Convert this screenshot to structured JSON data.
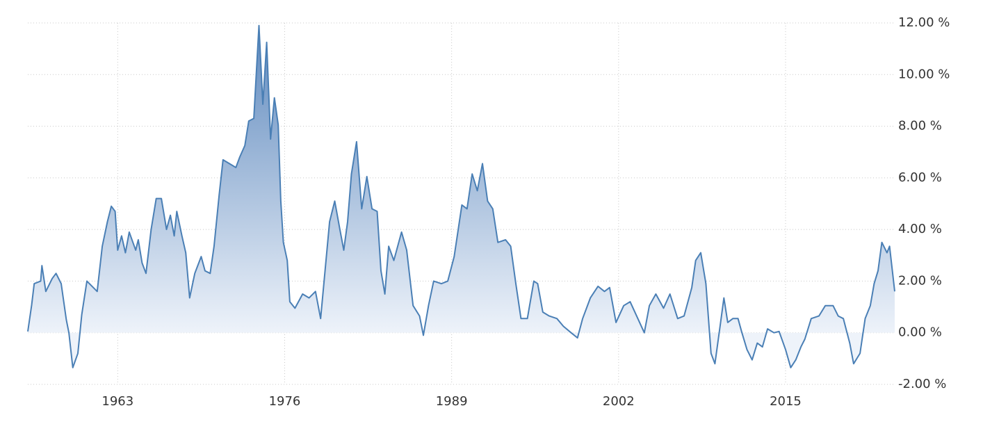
{
  "chart_data": {
    "type": "area",
    "x": [
      1956.0,
      1956.3,
      1956.5,
      1957.0,
      1957.1,
      1957.4,
      1957.9,
      1958.2,
      1958.6,
      1959.0,
      1959.2,
      1959.5,
      1959.9,
      1960.2,
      1960.6,
      1961.1,
      1961.4,
      1961.8,
      1962.2,
      1962.5,
      1962.8,
      1963.0,
      1963.3,
      1963.6,
      1963.9,
      1964.4,
      1964.6,
      1964.9,
      1965.2,
      1965.6,
      1966.0,
      1966.4,
      1966.8,
      1967.1,
      1967.4,
      1967.6,
      1968.0,
      1968.3,
      1968.6,
      1969.0,
      1969.5,
      1969.8,
      1970.2,
      1970.5,
      1970.9,
      1971.2,
      1971.7,
      1972.2,
      1972.5,
      1972.9,
      1973.2,
      1973.6,
      1974.0,
      1974.3,
      1974.6,
      1974.9,
      1975.2,
      1975.5,
      1975.7,
      1975.9,
      1976.2,
      1976.4,
      1976.8,
      1977.4,
      1977.9,
      1978.4,
      1978.8,
      1979.2,
      1979.5,
      1979.9,
      1980.3,
      1980.6,
      1980.9,
      1981.2,
      1981.6,
      1982.0,
      1982.4,
      1982.8,
      1983.2,
      1983.5,
      1983.8,
      1984.1,
      1984.5,
      1985.1,
      1985.5,
      1986.0,
      1986.5,
      1986.8,
      1987.2,
      1987.6,
      1988.2,
      1988.7,
      1989.2,
      1989.8,
      1990.2,
      1990.6,
      1991.0,
      1991.4,
      1991.8,
      1992.2,
      1992.6,
      1993.2,
      1993.6,
      1994.0,
      1994.4,
      1994.9,
      1995.4,
      1995.7,
      1996.1,
      1996.6,
      1997.2,
      1997.7,
      1998.3,
      1998.8,
      1999.2,
      1999.8,
      2000.4,
      2000.9,
      2001.3,
      2001.8,
      2002.4,
      2002.9,
      2003.5,
      2004.0,
      2004.4,
      2004.9,
      2005.5,
      2006.0,
      2006.6,
      2007.1,
      2007.7,
      2008.0,
      2008.4,
      2008.8,
      2009.2,
      2009.5,
      2009.9,
      2010.2,
      2010.5,
      2010.9,
      2011.3,
      2011.6,
      2012.0,
      2012.4,
      2012.8,
      2013.2,
      2013.6,
      2014.1,
      2014.5,
      2015.0,
      2015.4,
      2015.8,
      2016.2,
      2016.5,
      2017.0,
      2017.6,
      2018.1,
      2018.7,
      2019.1,
      2019.5,
      2020.0,
      2020.3,
      2020.8,
      2021.2,
      2021.6,
      2021.9,
      2022.2,
      2022.5,
      2022.9,
      2023.1,
      2023.5
    ],
    "values": [
      0.05,
      1.07,
      1.9,
      2.0,
      2.6,
      1.6,
      2.1,
      2.3,
      1.9,
      0.5,
      0.0,
      -1.35,
      -0.8,
      0.7,
      2.0,
      1.75,
      1.6,
      3.35,
      4.3,
      4.9,
      4.7,
      3.2,
      3.75,
      3.1,
      3.9,
      3.2,
      3.6,
      2.7,
      2.3,
      4.0,
      5.2,
      5.2,
      4.0,
      4.55,
      3.75,
      4.7,
      3.75,
      3.1,
      1.35,
      2.3,
      2.95,
      2.4,
      2.3,
      3.35,
      5.35,
      6.7,
      6.55,
      6.4,
      6.8,
      7.25,
      8.2,
      8.3,
      11.9,
      8.85,
      11.25,
      7.5,
      9.1,
      8.05,
      5.1,
      3.5,
      2.8,
      1.2,
      0.95,
      1.5,
      1.35,
      1.6,
      0.55,
      2.7,
      4.3,
      5.1,
      4.0,
      3.2,
      4.3,
      6.15,
      7.4,
      4.8,
      6.05,
      4.8,
      4.7,
      2.4,
      1.5,
      3.35,
      2.8,
      3.9,
      3.2,
      1.05,
      0.65,
      -0.1,
      1.05,
      2.0,
      1.9,
      2.0,
      2.95,
      4.95,
      4.8,
      6.15,
      5.5,
      6.55,
      5.1,
      4.8,
      3.5,
      3.6,
      3.35,
      1.9,
      0.55,
      0.55,
      2.0,
      1.9,
      0.8,
      0.65,
      0.55,
      0.25,
      0.0,
      -0.2,
      0.55,
      1.35,
      1.8,
      1.6,
      1.75,
      0.4,
      1.05,
      1.2,
      0.55,
      0.0,
      1.05,
      1.5,
      0.95,
      1.5,
      0.55,
      0.65,
      1.75,
      2.8,
      3.1,
      1.9,
      -0.8,
      -1.2,
      0.25,
      1.35,
      0.4,
      0.55,
      0.55,
      0.0,
      -0.65,
      -1.05,
      -0.4,
      -0.55,
      0.15,
      0.0,
      0.05,
      -0.65,
      -1.35,
      -1.05,
      -0.55,
      -0.25,
      0.55,
      0.65,
      1.05,
      1.05,
      0.65,
      0.55,
      -0.4,
      -1.2,
      -0.8,
      0.55,
      1.05,
      1.9,
      2.4,
      3.5,
      3.1,
      3.35,
      1.6
    ],
    "color": "#4a7fb5",
    "xlim": [
      1956,
      2023.5
    ],
    "xticks": [
      1963,
      1976,
      1989,
      2002,
      2015
    ],
    "ylim": [
      -2,
      12
    ],
    "yticks": [
      {
        "value": -2,
        "label": "-2.00 %"
      },
      {
        "value": 0,
        "label": "0.00 %"
      },
      {
        "value": 2,
        "label": "2.00 %"
      },
      {
        "value": 4,
        "label": "4.00 %"
      },
      {
        "value": 6,
        "label": "6.00 %"
      },
      {
        "value": 8,
        "label": "8.00 %"
      },
      {
        "value": 10,
        "label": "10.00 %"
      },
      {
        "value": 12,
        "label": "12.00 %"
      }
    ],
    "grid": true
  }
}
